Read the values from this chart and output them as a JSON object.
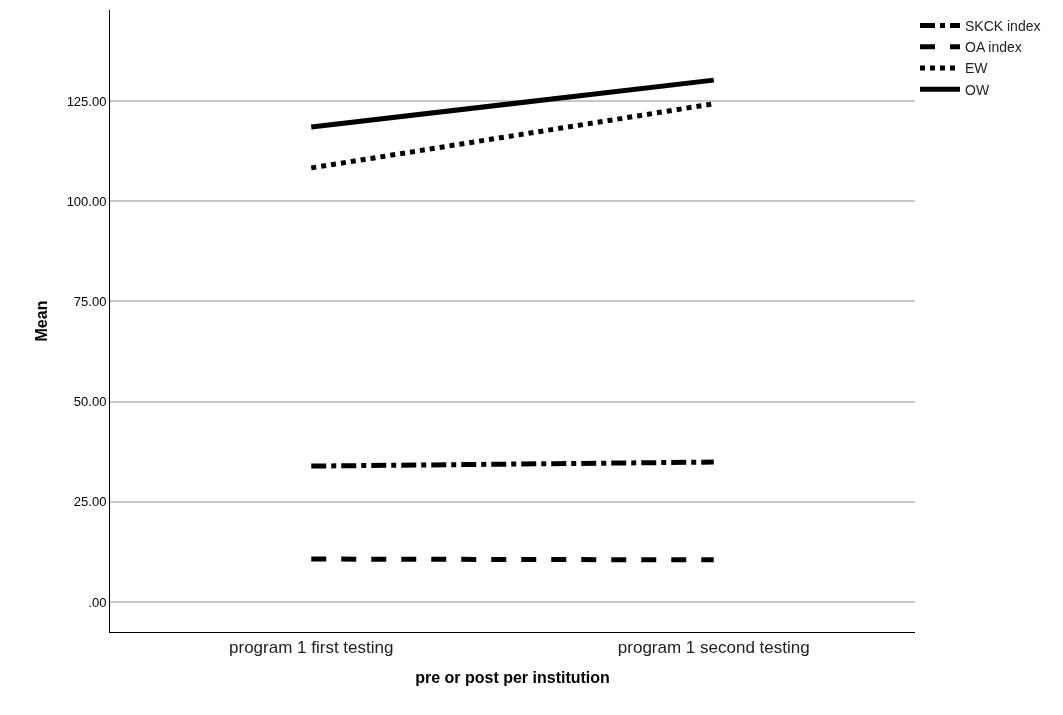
{
  "chart_data": {
    "type": "line",
    "xlabel": "pre or post per institution",
    "ylabel": "Mean",
    "categories": [
      "program 1 first testing",
      "program 1 second testing"
    ],
    "series": [
      {
        "name": "SKCK index",
        "color": "#000000",
        "line_style": "dashdot",
        "values": [
          33.9,
          34.9
        ]
      },
      {
        "name": "OA index",
        "color": "#000000",
        "line_style": "dashed",
        "values": [
          10.7,
          10.5
        ]
      },
      {
        "name": "EW",
        "color": "#000000",
        "line_style": "dotted",
        "values": [
          108.3,
          124.3
        ]
      },
      {
        "name": "OW",
        "color": "#000000",
        "line_style": "solid",
        "values": [
          118.5,
          130.2
        ]
      }
    ],
    "ylim": [
      -7.5,
      147.7
    ],
    "yticks": [
      {
        "value": 0,
        "label": ".00"
      },
      {
        "value": 25,
        "label": "25.00"
      },
      {
        "value": 50,
        "label": "50.00"
      },
      {
        "value": 75,
        "label": "75.00"
      },
      {
        "value": 100,
        "label": "100.00"
      },
      {
        "value": 125,
        "label": "125.00"
      }
    ],
    "grid": "y",
    "legend": "top right",
    "marker": "none"
  }
}
